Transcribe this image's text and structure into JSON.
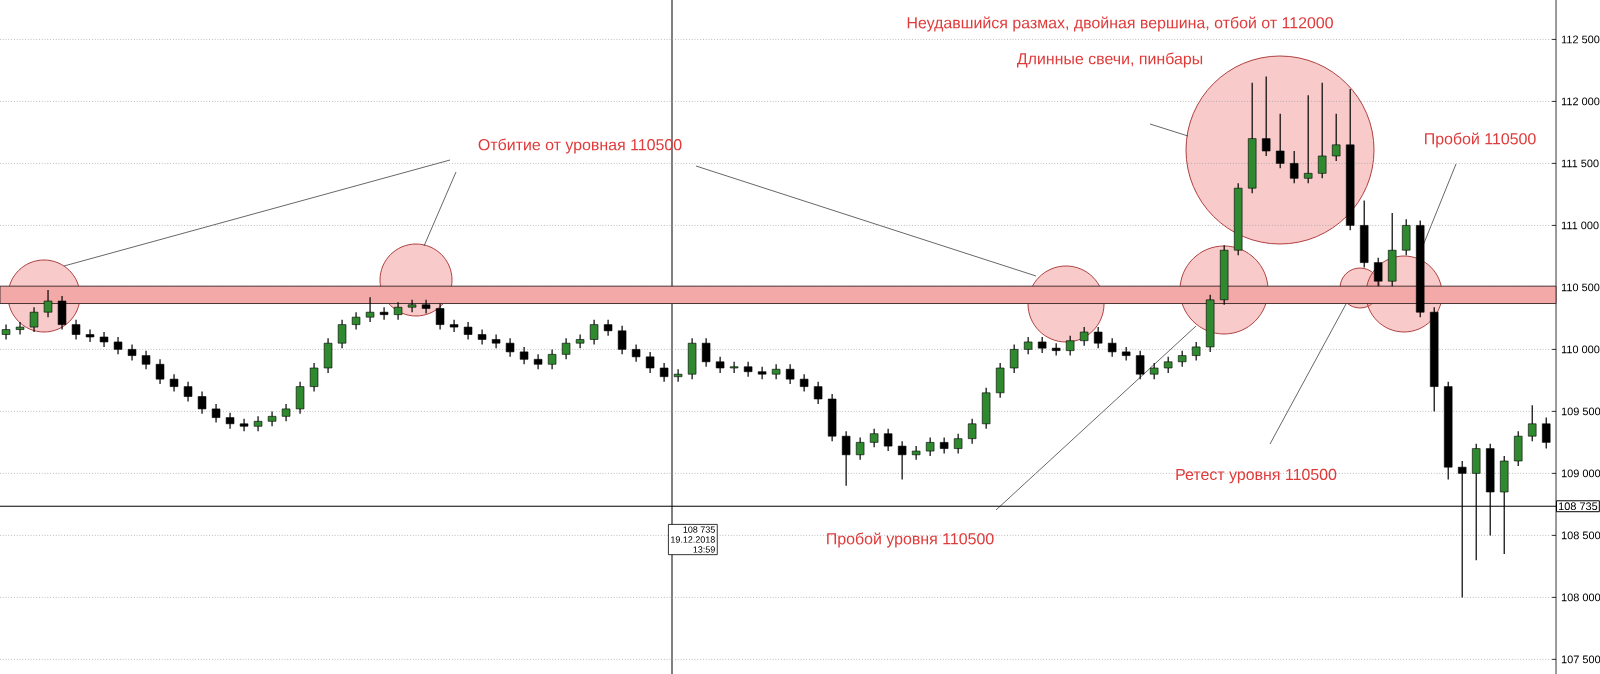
{
  "chart_data": {
    "type": "candlestick",
    "categories": [
      null,
      null,
      null,
      null,
      null,
      null,
      null,
      null,
      null,
      null,
      null,
      null,
      null,
      null,
      null,
      null,
      null,
      null,
      null,
      null,
      null,
      null,
      null,
      null,
      null,
      null,
      null,
      null,
      null,
      null,
      null,
      null,
      null,
      null,
      null,
      null,
      null,
      null,
      null,
      null,
      null,
      null,
      null,
      null,
      null,
      null,
      null,
      null,
      null,
      null,
      null,
      null,
      null,
      null,
      null,
      null,
      null,
      null,
      null,
      null,
      null,
      null,
      null,
      null,
      null,
      null,
      null,
      null,
      null,
      null,
      null,
      null,
      null,
      null,
      null,
      null,
      null,
      null,
      null,
      null,
      null,
      null,
      null,
      null,
      null,
      null,
      null,
      null,
      null,
      null,
      null,
      null,
      null,
      null,
      null,
      null,
      null,
      null,
      null,
      null,
      null,
      null,
      null,
      null,
      null,
      null,
      null,
      null,
      null,
      null,
      null
    ],
    "ohlc": [
      [
        110120,
        110200,
        110080,
        110160
      ],
      [
        110160,
        110220,
        110120,
        110180
      ],
      [
        110180,
        110340,
        110140,
        110300
      ],
      [
        110300,
        110480,
        110260,
        110390
      ],
      [
        110390,
        110430,
        110160,
        110200
      ],
      [
        110200,
        110240,
        110080,
        110120
      ],
      [
        110120,
        110160,
        110060,
        110100
      ],
      [
        110100,
        110140,
        110020,
        110060
      ],
      [
        110060,
        110100,
        109960,
        110000
      ],
      [
        110000,
        110040,
        109910,
        109950
      ],
      [
        109950,
        109990,
        109840,
        109880
      ],
      [
        109880,
        109920,
        109720,
        109760
      ],
      [
        109760,
        109800,
        109660,
        109700
      ],
      [
        109700,
        109740,
        109580,
        109620
      ],
      [
        109620,
        109660,
        109480,
        109520
      ],
      [
        109520,
        109560,
        109410,
        109450
      ],
      [
        109450,
        109490,
        109360,
        109400
      ],
      [
        109400,
        109440,
        109340,
        109380
      ],
      [
        109380,
        109460,
        109340,
        109420
      ],
      [
        109420,
        109500,
        109380,
        109460
      ],
      [
        109460,
        109560,
        109420,
        109520
      ],
      [
        109520,
        109740,
        109480,
        109700
      ],
      [
        109700,
        109890,
        109660,
        109850
      ],
      [
        109850,
        110090,
        109810,
        110050
      ],
      [
        110050,
        110240,
        110010,
        110200
      ],
      [
        110200,
        110300,
        110160,
        110260
      ],
      [
        110260,
        110420,
        110220,
        110300
      ],
      [
        110300,
        110340,
        110240,
        110280
      ],
      [
        110280,
        110380,
        110240,
        110340
      ],
      [
        110340,
        110400,
        110300,
        110360
      ],
      [
        110360,
        110400,
        110290,
        110330
      ],
      [
        110330,
        110370,
        110160,
        110200
      ],
      [
        110200,
        110240,
        110140,
        110180
      ],
      [
        110180,
        110220,
        110080,
        110120
      ],
      [
        110120,
        110160,
        110040,
        110080
      ],
      [
        110080,
        110120,
        110010,
        110050
      ],
      [
        110050,
        110090,
        109940,
        109980
      ],
      [
        109980,
        110020,
        109880,
        109920
      ],
      [
        109920,
        109960,
        109840,
        109880
      ],
      [
        109880,
        110000,
        109840,
        109960
      ],
      [
        109960,
        110090,
        109920,
        110050
      ],
      [
        110050,
        110120,
        110010,
        110080
      ],
      [
        110080,
        110240,
        110040,
        110200
      ],
      [
        110200,
        110240,
        110110,
        110150
      ],
      [
        110150,
        110190,
        109960,
        110000
      ],
      [
        110000,
        110040,
        109900,
        109940
      ],
      [
        109940,
        109980,
        109810,
        109850
      ],
      [
        109850,
        109890,
        109740,
        109780
      ],
      [
        109780,
        109840,
        109740,
        109800
      ],
      [
        109800,
        110090,
        109760,
        110050
      ],
      [
        110050,
        110090,
        109860,
        109900
      ],
      [
        109900,
        109940,
        109810,
        109850
      ],
      [
        109850,
        109900,
        109810,
        109860
      ],
      [
        109860,
        109900,
        109780,
        109820
      ],
      [
        109820,
        109860,
        109760,
        109800
      ],
      [
        109800,
        109880,
        109760,
        109840
      ],
      [
        109840,
        109880,
        109720,
        109760
      ],
      [
        109760,
        109800,
        109660,
        109700
      ],
      [
        109700,
        109740,
        109560,
        109600
      ],
      [
        109600,
        109640,
        109260,
        109300
      ],
      [
        109300,
        109340,
        108900,
        109150
      ],
      [
        109150,
        109290,
        109110,
        109250
      ],
      [
        109250,
        109360,
        109210,
        109320
      ],
      [
        109320,
        109360,
        109180,
        109220
      ],
      [
        109220,
        109260,
        108950,
        109150
      ],
      [
        109150,
        109220,
        109110,
        109180
      ],
      [
        109180,
        109290,
        109140,
        109250
      ],
      [
        109250,
        109290,
        109160,
        109200
      ],
      [
        109200,
        109320,
        109160,
        109280
      ],
      [
        109280,
        109440,
        109240,
        109400
      ],
      [
        109400,
        109690,
        109360,
        109650
      ],
      [
        109650,
        109890,
        109610,
        109850
      ],
      [
        109850,
        110040,
        109810,
        110000
      ],
      [
        110000,
        110100,
        109960,
        110060
      ],
      [
        110060,
        110100,
        109970,
        110010
      ],
      [
        110010,
        110050,
        109950,
        109990
      ],
      [
        109990,
        110110,
        109950,
        110070
      ],
      [
        110070,
        110180,
        110030,
        110140
      ],
      [
        110140,
        110180,
        110010,
        110050
      ],
      [
        110050,
        110090,
        109940,
        109980
      ],
      [
        109980,
        110020,
        109910,
        109950
      ],
      [
        109950,
        109990,
        109760,
        109800
      ],
      [
        109800,
        109890,
        109760,
        109850
      ],
      [
        109850,
        109940,
        109810,
        109900
      ],
      [
        109900,
        109990,
        109860,
        109950
      ],
      [
        109950,
        110060,
        109910,
        110020
      ],
      [
        110020,
        110440,
        109980,
        110400
      ],
      [
        110400,
        110840,
        110360,
        110800
      ],
      [
        110800,
        111340,
        110760,
        111300
      ],
      [
        111300,
        112150,
        111260,
        111700
      ],
      [
        111700,
        112200,
        111560,
        111600
      ],
      [
        111600,
        111900,
        111460,
        111500
      ],
      [
        111500,
        111600,
        111340,
        111380
      ],
      [
        111380,
        112050,
        111340,
        111420
      ],
      [
        111420,
        112150,
        111380,
        111560
      ],
      [
        111560,
        111900,
        111520,
        111650
      ],
      [
        111650,
        112100,
        110960,
        111000
      ],
      [
        111000,
        111200,
        110660,
        110700
      ],
      [
        110700,
        110740,
        110510,
        110550
      ],
      [
        110550,
        111100,
        110510,
        110800
      ],
      [
        110800,
        111050,
        110760,
        111000
      ],
      [
        111000,
        111040,
        110260,
        110300
      ],
      [
        110300,
        110340,
        109500,
        109700
      ],
      [
        109700,
        109740,
        108950,
        109050
      ],
      [
        109050,
        109100,
        108000,
        109000
      ],
      [
        109000,
        109240,
        108300,
        109200
      ],
      [
        109200,
        109240,
        108500,
        108850
      ],
      [
        108850,
        109140,
        108350,
        109100
      ],
      [
        109100,
        109340,
        109060,
        109300
      ],
      [
        109300,
        109550,
        109260,
        109400
      ],
      [
        109400,
        109450,
        109200,
        109250
      ]
    ],
    "ylim": [
      107382,
      112818
    ],
    "yticks": [
      {
        "value": 107500,
        "label": "107 500"
      },
      {
        "value": 108000,
        "label": "108 000"
      },
      {
        "value": 108500,
        "label": "108 500"
      },
      {
        "value": 109000,
        "label": "109 000"
      },
      {
        "value": 109500,
        "label": "109 500"
      },
      {
        "value": 110000,
        "label": "110 000"
      },
      {
        "value": 110500,
        "label": "110 500"
      },
      {
        "value": 111000,
        "label": "111 000"
      },
      {
        "value": 111500,
        "label": "111 500"
      },
      {
        "value": 112000,
        "label": "112 000"
      },
      {
        "value": 112500,
        "label": "112 500"
      }
    ],
    "tick_labels": "y",
    "grid": "y",
    "bands": [
      {
        "axis": "y",
        "from": 110370,
        "to": 110510,
        "color": "#f4a9a9"
      }
    ],
    "ref_lines": [
      {
        "axis": "y",
        "value": 108735,
        "label": "108 735"
      }
    ],
    "annotations": [
      "Отбитие от уровная 110500",
      "Неудавшийся размах, двойная вершина, отбой от 112000",
      "Длинные свечи, пинбары",
      "Пробой 110500",
      "Ретест уровня 110500",
      "Пробой уровня 110500",
      "108 735",
      "19.12.2018",
      "13:59"
    ]
  }
}
